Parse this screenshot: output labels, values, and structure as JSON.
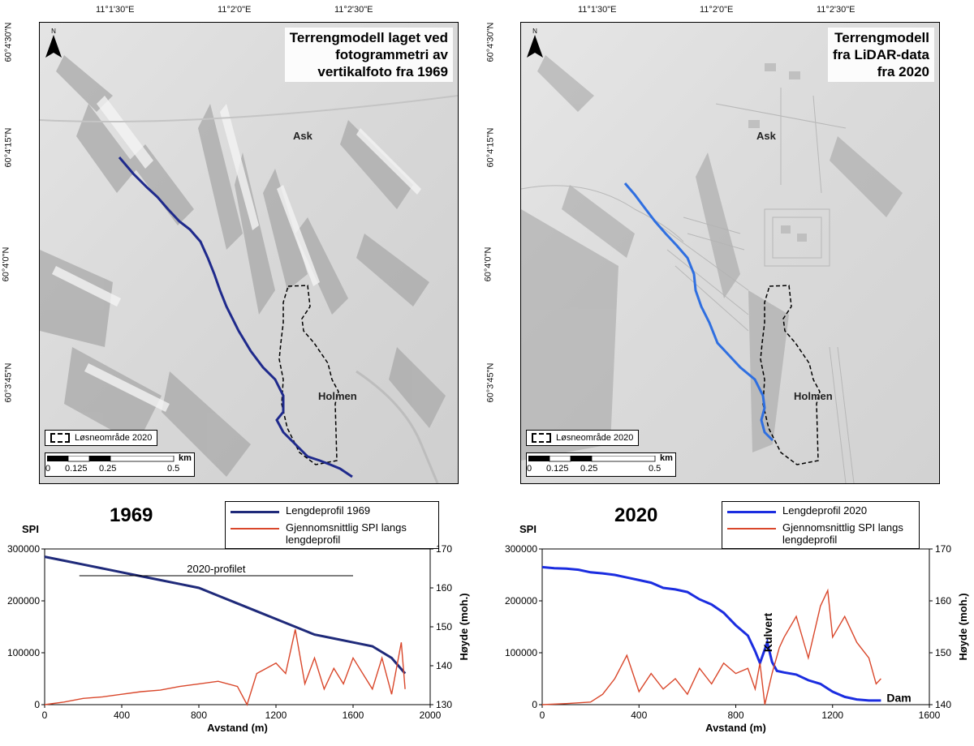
{
  "maps": [
    {
      "title_lines": [
        "Terrengmodell laget ved",
        "fotogrammetri av",
        "vertikalfoto fra 1969"
      ],
      "place_ask": "Ask",
      "place_holmen": "Holmen",
      "legend": "Løsneområde 2020",
      "scale_labels": [
        "0",
        "0.125",
        "0.25",
        "0.5"
      ],
      "scale_unit": "km",
      "north": "N",
      "lon_labels": [
        "11°1'30\"E",
        "11°2'0\"E",
        "11°2'30\"E"
      ],
      "lat_labels": [
        "60°4'30\"N",
        "60°4'15\"N",
        "60°4'0\"N",
        "60°3'45\"N"
      ],
      "profile_color": "#1f2a8c"
    },
    {
      "title_lines": [
        "Terrengmodell",
        "fra LiDAR-data",
        "fra 2020"
      ],
      "place_ask": "Ask",
      "place_holmen": "Holmen",
      "legend": "Løsneområde 2020",
      "scale_labels": [
        "0",
        "0.125",
        "0.25",
        "0.5"
      ],
      "scale_unit": "km",
      "north": "N",
      "lon_labels": [
        "11°1'30\"E",
        "11°2'0\"E",
        "11°2'30\"E"
      ],
      "lat_labels": [
        "60°4'30\"N",
        "60°4'15\"N",
        "60°4'0\"N",
        "60°3'45\"N"
      ],
      "profile_color": "#2f6fe0"
    }
  ],
  "chart_data": [
    {
      "type": "line",
      "title": "1969",
      "left_label": "SPI",
      "xlabel": "Avstand (m)",
      "ylabel_right": "Høyde (moh.)",
      "xlim": [
        0,
        2000
      ],
      "x_ticks": [
        0,
        400,
        800,
        1200,
        1600,
        2000
      ],
      "ylim_left": [
        0,
        300000
      ],
      "y_left_ticks": [
        0,
        100000,
        200000,
        300000
      ],
      "ylim_right": [
        130,
        170
      ],
      "y_right_ticks": [
        130,
        140,
        150,
        160,
        170
      ],
      "annotation": "2020-profilet",
      "annotation_range": [
        180,
        1600
      ],
      "series": [
        {
          "name": "Lengdeprofil 1969",
          "color": "#1f2a7a",
          "axis": "right",
          "x": [
            0,
            100,
            200,
            300,
            400,
            500,
            600,
            700,
            800,
            900,
            1000,
            1100,
            1200,
            1300,
            1400,
            1500,
            1600,
            1700,
            1800,
            1870
          ],
          "y": [
            168,
            167,
            166,
            165,
            164,
            163,
            162,
            161,
            160,
            158,
            156,
            154,
            152,
            150,
            148,
            147,
            146,
            145,
            142,
            138
          ]
        },
        {
          "name": "Gjennomsnittlig SPI langs lengdeprofil",
          "color": "#d9472b",
          "axis": "left",
          "x": [
            0,
            100,
            200,
            300,
            400,
            500,
            600,
            700,
            800,
            900,
            1000,
            1050,
            1100,
            1150,
            1200,
            1250,
            1300,
            1350,
            1400,
            1450,
            1500,
            1550,
            1600,
            1650,
            1700,
            1750,
            1800,
            1850,
            1870
          ],
          "y": [
            0,
            5000,
            12000,
            15000,
            20000,
            25000,
            28000,
            35000,
            40000,
            45000,
            35000,
            0,
            60000,
            70000,
            80000,
            60000,
            145000,
            40000,
            90000,
            30000,
            70000,
            40000,
            90000,
            60000,
            30000,
            90000,
            20000,
            120000,
            30000
          ]
        }
      ]
    },
    {
      "type": "line",
      "title": "2020",
      "left_label": "SPI",
      "xlabel": "Avstand (m)",
      "ylabel_right": "Høyde (moh.)",
      "xlim": [
        0,
        1600
      ],
      "x_ticks": [
        0,
        400,
        800,
        1200,
        1600
      ],
      "ylim_left": [
        0,
        300000
      ],
      "y_left_ticks": [
        0,
        100000,
        200000,
        300000
      ],
      "ylim_right": [
        140,
        170
      ],
      "y_right_ticks": [
        140,
        150,
        160,
        170
      ],
      "annotations": [
        "Kulvert",
        "Dam"
      ],
      "series": [
        {
          "name": "Lengdeprofil 2020",
          "color": "#1b2de0",
          "axis": "right",
          "x": [
            0,
            50,
            100,
            150,
            200,
            250,
            300,
            350,
            400,
            450,
            500,
            550,
            600,
            650,
            700,
            750,
            800,
            850,
            880,
            900,
            930,
            950,
            970,
            1000,
            1050,
            1100,
            1150,
            1200,
            1250,
            1300,
            1350,
            1400
          ],
          "y": [
            166.5,
            166.3,
            166.2,
            166,
            165.5,
            165.3,
            165,
            164.5,
            164,
            163.5,
            162.5,
            162.2,
            161.7,
            160.3,
            159.3,
            157.7,
            155.3,
            153.3,
            150.3,
            148,
            152,
            148.2,
            146.5,
            146.2,
            145.8,
            144.7,
            144,
            142.5,
            141.5,
            141,
            140.8,
            140.8
          ]
        },
        {
          "name": "Gjennomsnittlig SPI langs lengdeprofil",
          "color": "#d9472b",
          "axis": "left",
          "x": [
            0,
            100,
            200,
            250,
            300,
            350,
            400,
            450,
            500,
            550,
            600,
            650,
            700,
            750,
            800,
            850,
            880,
            900,
            920,
            950,
            980,
            1000,
            1050,
            1100,
            1150,
            1180,
            1200,
            1250,
            1300,
            1350,
            1380,
            1400
          ],
          "y": [
            0,
            2000,
            5000,
            20000,
            50000,
            95000,
            25000,
            60000,
            30000,
            50000,
            20000,
            70000,
            40000,
            80000,
            60000,
            70000,
            30000,
            80000,
            0,
            60000,
            110000,
            130000,
            170000,
            90000,
            190000,
            220000,
            130000,
            170000,
            120000,
            90000,
            40000,
            50000
          ]
        }
      ]
    }
  ],
  "plot_legends": [
    {
      "line1": "Lengdeprofil 1969",
      "line2": "Gjennomsnittlig SPI langs lengdeprofil"
    },
    {
      "line1": "Lengdeprofil 2020",
      "line2": "Gjennomsnittlig SPI langs lengdeprofil"
    }
  ]
}
